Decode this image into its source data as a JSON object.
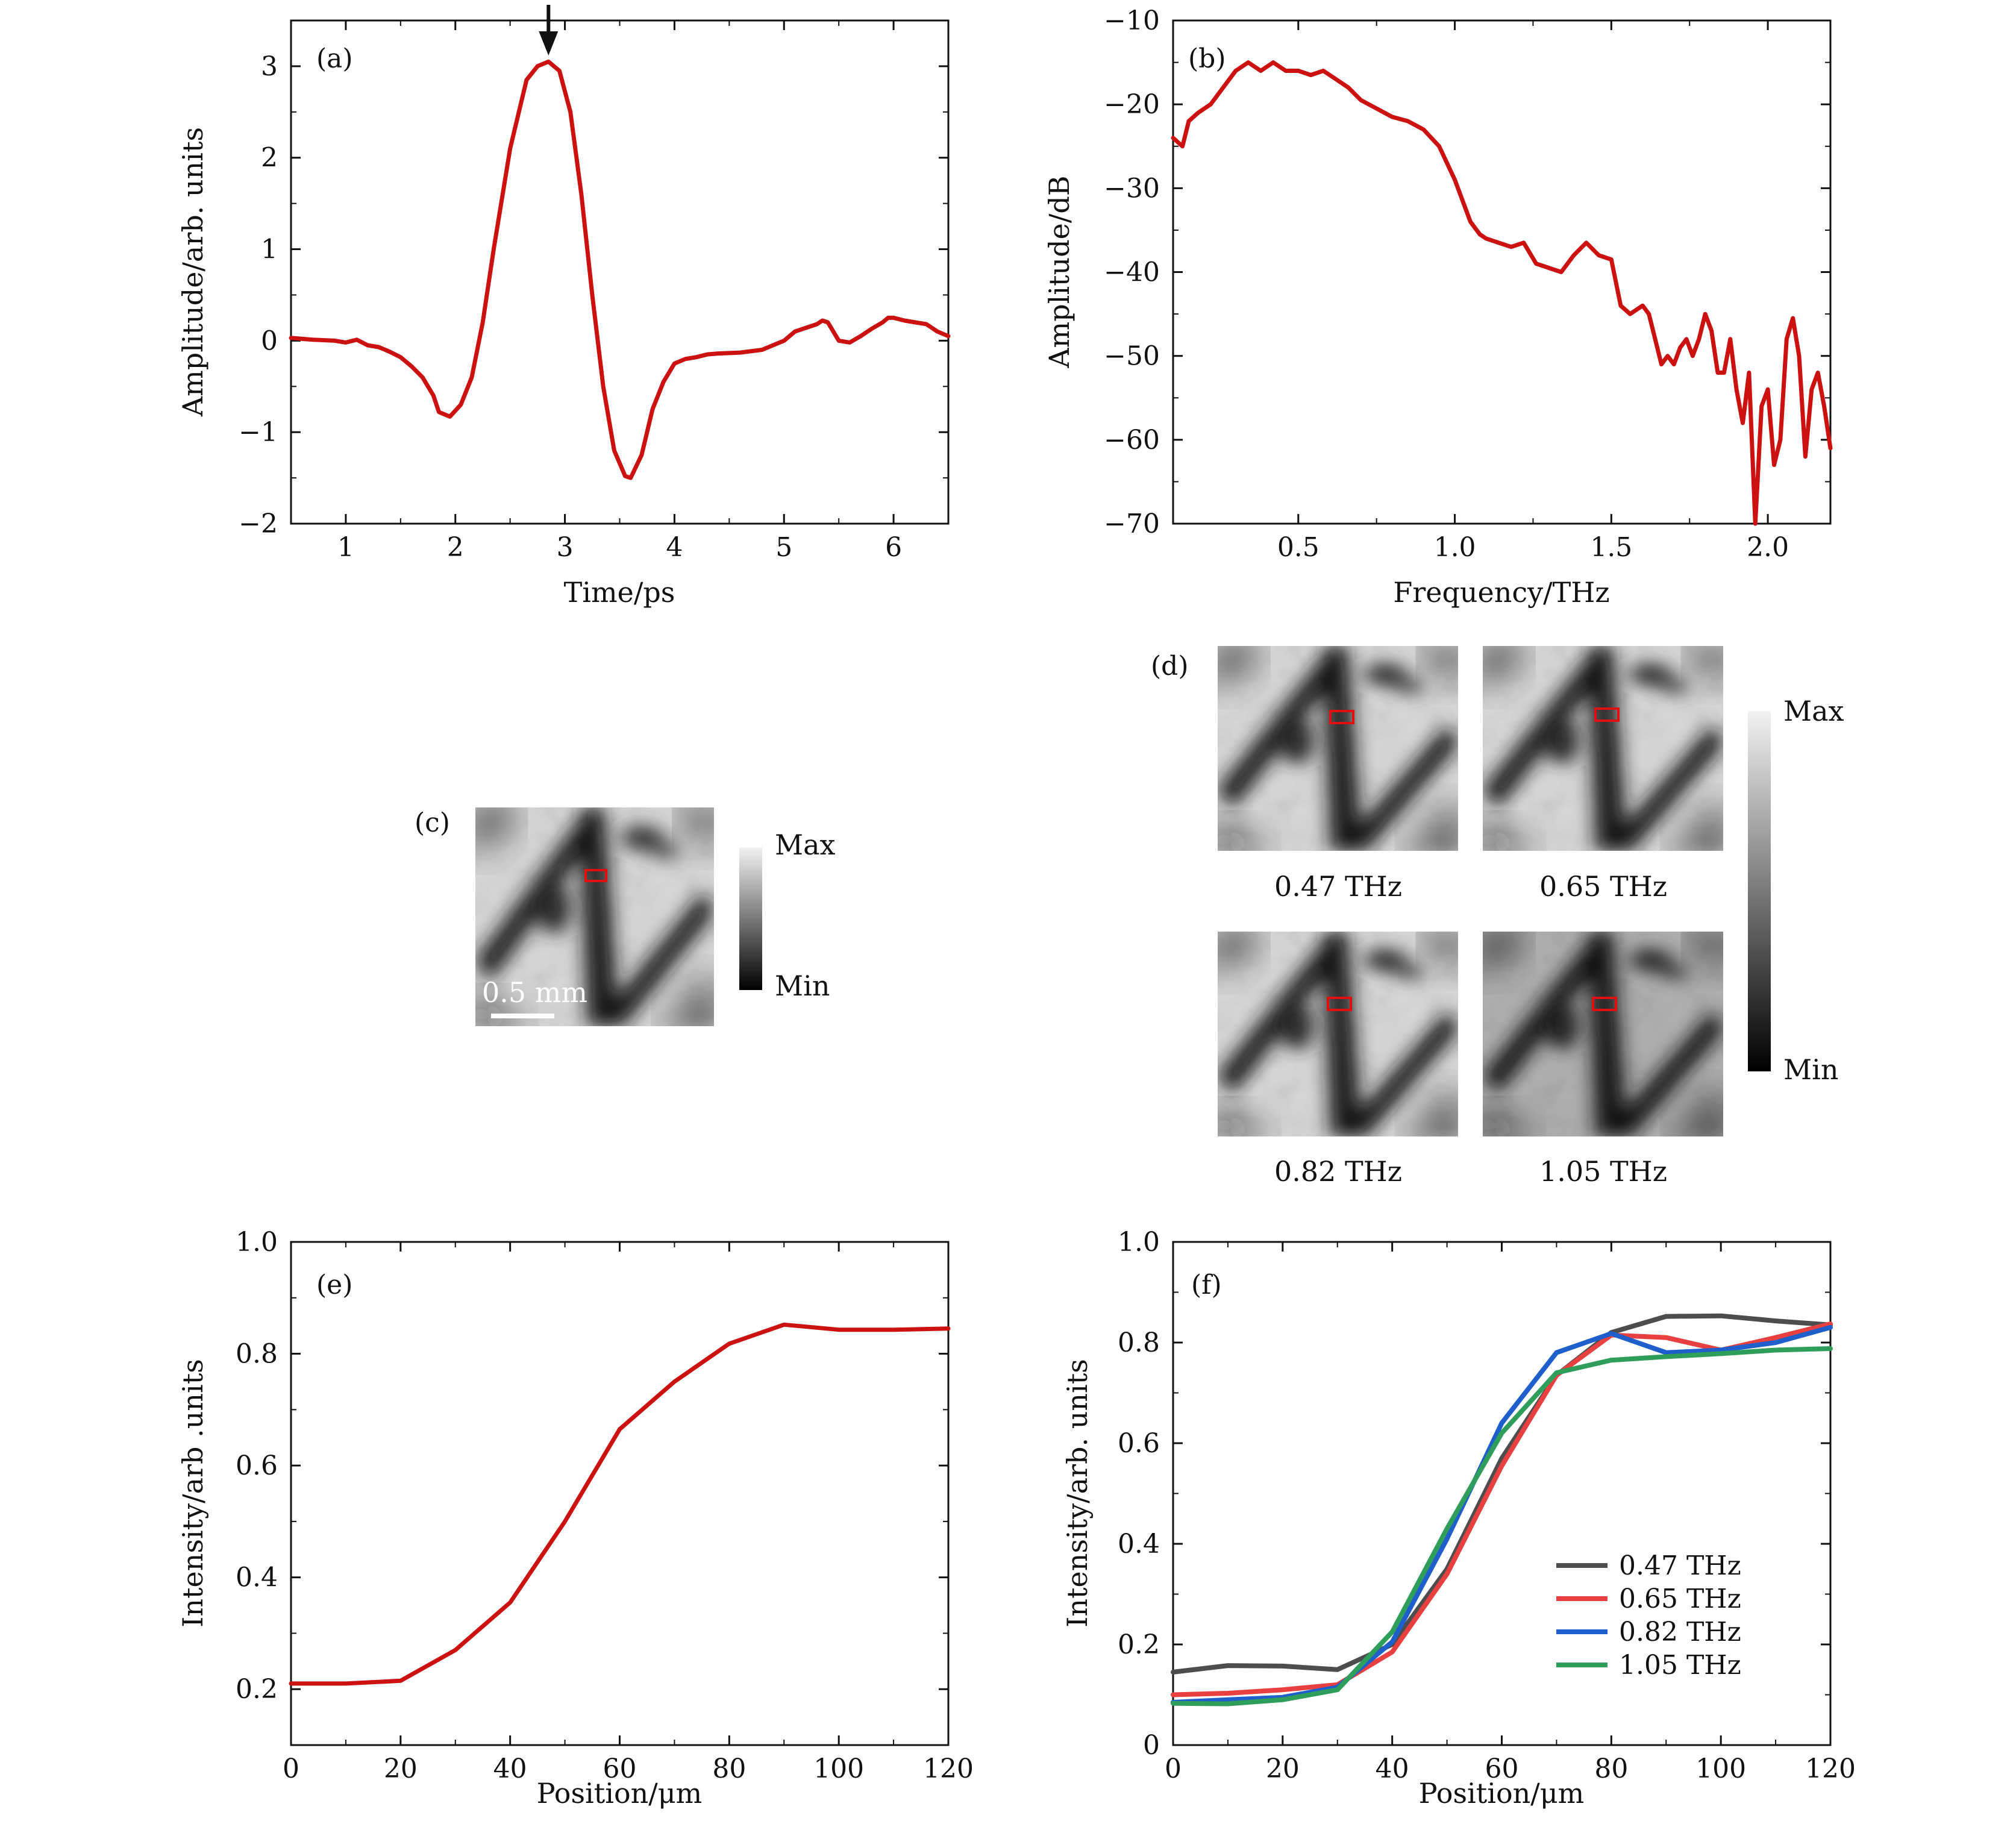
{
  "chart_data": [
    {
      "id": "a",
      "type": "line",
      "panel_label": "(a)",
      "xlabel": "Time/ps",
      "ylabel": "Amplitude/arb. units",
      "xlim": [
        0.5,
        6.5
      ],
      "ylim": [
        -2,
        3.5
      ],
      "xticks": [
        1,
        2,
        3,
        4,
        5,
        6
      ],
      "yticks": [
        -2,
        -1,
        0,
        1,
        2,
        3
      ],
      "xtick_labels": [
        "1",
        "2",
        "3",
        "4",
        "5",
        "6"
      ],
      "ytick_labels": [
        "−2",
        "−1",
        "0",
        "1",
        "2",
        "3"
      ],
      "annotation": {
        "type": "arrow-down",
        "x": 2.85
      },
      "color": "#cc1111",
      "series": [
        {
          "x": [
            0.5,
            0.7,
            0.9,
            1.0,
            1.1,
            1.2,
            1.3,
            1.4,
            1.5,
            1.6,
            1.7,
            1.8,
            1.85,
            1.95,
            2.05,
            2.15,
            2.25,
            2.35,
            2.5,
            2.65,
            2.75,
            2.85,
            2.95,
            3.05,
            3.15,
            3.25,
            3.35,
            3.45,
            3.55,
            3.6,
            3.7,
            3.8,
            3.9,
            4.0,
            4.1,
            4.2,
            4.3,
            4.4,
            4.6,
            4.8,
            5.0,
            5.1,
            5.2,
            5.3,
            5.35,
            5.4,
            5.45,
            5.5,
            5.6,
            5.7,
            5.8,
            5.9,
            5.95,
            6.0,
            6.1,
            6.2,
            6.3,
            6.4,
            6.5
          ],
          "y": [
            0.03,
            0.01,
            0.0,
            -0.02,
            0.01,
            -0.05,
            -0.07,
            -0.12,
            -0.18,
            -0.28,
            -0.4,
            -0.6,
            -0.78,
            -0.83,
            -0.7,
            -0.4,
            0.2,
            1.0,
            2.1,
            2.85,
            3.0,
            3.05,
            2.95,
            2.5,
            1.6,
            0.5,
            -0.5,
            -1.2,
            -1.48,
            -1.5,
            -1.25,
            -0.75,
            -0.45,
            -0.25,
            -0.2,
            -0.18,
            -0.15,
            -0.14,
            -0.13,
            -0.1,
            0.0,
            0.1,
            0.14,
            0.18,
            0.22,
            0.2,
            0.1,
            0.0,
            -0.02,
            0.05,
            0.13,
            0.2,
            0.25,
            0.25,
            0.22,
            0.2,
            0.18,
            0.1,
            0.05
          ]
        }
      ]
    },
    {
      "id": "b",
      "type": "line",
      "panel_label": "(b)",
      "xlabel": "Frequency/THz",
      "ylabel": "Amplitude/dB",
      "xlim": [
        0.1,
        2.2
      ],
      "ylim": [
        -70,
        -10
      ],
      "xticks": [
        0.5,
        1.0,
        1.5,
        2.0
      ],
      "yticks": [
        -70,
        -60,
        -50,
        -40,
        -30,
        -20,
        -10
      ],
      "xtick_labels": [
        "0.5",
        "1.0",
        "1.5",
        "2.0"
      ],
      "ytick_labels": [
        "−70",
        "−60",
        "−50",
        "−40",
        "−30",
        "−20",
        "−10"
      ],
      "color": "#cc1111",
      "series": [
        {
          "x": [
            0.1,
            0.13,
            0.15,
            0.18,
            0.22,
            0.26,
            0.3,
            0.34,
            0.38,
            0.42,
            0.46,
            0.5,
            0.54,
            0.58,
            0.62,
            0.66,
            0.7,
            0.75,
            0.8,
            0.85,
            0.9,
            0.95,
            1.0,
            1.05,
            1.08,
            1.1,
            1.14,
            1.18,
            1.22,
            1.26,
            1.3,
            1.34,
            1.38,
            1.42,
            1.46,
            1.5,
            1.53,
            1.56,
            1.6,
            1.62,
            1.64,
            1.66,
            1.68,
            1.7,
            1.72,
            1.74,
            1.76,
            1.78,
            1.8,
            1.82,
            1.84,
            1.86,
            1.88,
            1.9,
            1.92,
            1.94,
            1.96,
            1.98,
            2.0,
            2.02,
            2.04,
            2.06,
            2.08,
            2.1,
            2.12,
            2.14,
            2.16,
            2.18,
            2.2
          ],
          "y": [
            -24,
            -25,
            -22,
            -21,
            -20,
            -18,
            -16,
            -15,
            -16,
            -15,
            -16,
            -16,
            -16.5,
            -16,
            -17,
            -18,
            -19.5,
            -20.5,
            -21.5,
            -22,
            -23,
            -25,
            -29,
            -34,
            -35.5,
            -36,
            -36.5,
            -37,
            -36.5,
            -39,
            -39.5,
            -40,
            -38,
            -36.5,
            -38,
            -38.5,
            -44,
            -45,
            -44,
            -45,
            -48,
            -51,
            -50,
            -51,
            -49,
            -48,
            -50,
            -48,
            -45,
            -47,
            -52,
            -52,
            -48,
            -54,
            -58,
            -52,
            -70,
            -56,
            -54,
            -63,
            -60,
            -48,
            -45.5,
            -50,
            -62,
            -54,
            -52,
            -56,
            -61
          ]
        }
      ]
    },
    {
      "id": "c",
      "type": "heatmap",
      "panel_label": "(c)",
      "scale_bar_label": "0.5 mm",
      "colorbar": {
        "max_label": "Max",
        "min_label": "Min"
      }
    },
    {
      "id": "d",
      "type": "heatmap",
      "panel_label": "(d)",
      "image_labels": [
        "0.47 THz",
        "0.65 THz",
        "0.82 THz",
        "1.05 THz"
      ],
      "colorbar": {
        "max_label": "Max",
        "min_label": "Min"
      }
    },
    {
      "id": "e",
      "type": "line",
      "panel_label": "(e)",
      "xlabel": "Position/μm",
      "ylabel": "Intensity/arb .units",
      "xlim": [
        0,
        120
      ],
      "ylim": [
        0.1,
        1.0
      ],
      "xticks": [
        0,
        20,
        40,
        60,
        80,
        100,
        120
      ],
      "yticks": [
        0.2,
        0.4,
        0.6,
        0.8,
        1.0
      ],
      "xtick_labels": [
        "0",
        "20",
        "40",
        "60",
        "80",
        "100",
        "120"
      ],
      "ytick_labels": [
        "0.2",
        "0.4",
        "0.6",
        "0.8",
        "1.0"
      ],
      "color": "#cc1111",
      "series": [
        {
          "x": [
            0,
            10,
            20,
            30,
            40,
            50,
            60,
            70,
            80,
            90,
            100,
            110,
            120
          ],
          "y": [
            0.21,
            0.21,
            0.215,
            0.27,
            0.355,
            0.5,
            0.665,
            0.75,
            0.818,
            0.852,
            0.843,
            0.843,
            0.845
          ]
        }
      ]
    },
    {
      "id": "f",
      "type": "line",
      "panel_label": "(f)",
      "xlabel": "Position/μm",
      "ylabel": "Intensity/arb. units",
      "xlim": [
        0,
        120
      ],
      "ylim": [
        0,
        1.0
      ],
      "xticks": [
        0,
        20,
        40,
        60,
        80,
        100,
        120
      ],
      "yticks": [
        0,
        0.2,
        0.4,
        0.6,
        0.8,
        1.0
      ],
      "xtick_labels": [
        "0",
        "20",
        "40",
        "60",
        "80",
        "100",
        "120"
      ],
      "ytick_labels": [
        "0",
        "0.2",
        "0.4",
        "0.6",
        "0.8",
        "1.0"
      ],
      "legend": "lower-right",
      "series": [
        {
          "name": "0.47 THz",
          "color": "#4d4d4d",
          "x": [
            0,
            10,
            20,
            30,
            40,
            50,
            60,
            70,
            80,
            90,
            100,
            110,
            120
          ],
          "y": [
            0.145,
            0.158,
            0.157,
            0.15,
            0.2,
            0.35,
            0.57,
            0.735,
            0.82,
            0.852,
            0.853,
            0.843,
            0.835
          ]
        },
        {
          "name": "0.65 THz",
          "color": "#e84040",
          "x": [
            0,
            10,
            20,
            30,
            40,
            50,
            60,
            70,
            80,
            90,
            100,
            110,
            120
          ],
          "y": [
            0.1,
            0.103,
            0.11,
            0.12,
            0.185,
            0.34,
            0.555,
            0.735,
            0.815,
            0.81,
            0.785,
            0.81,
            0.837
          ]
        },
        {
          "name": "0.82 THz",
          "color": "#1f5fcc",
          "x": [
            0,
            10,
            20,
            30,
            40,
            50,
            60,
            70,
            80,
            90,
            100,
            110,
            120
          ],
          "y": [
            0.085,
            0.09,
            0.095,
            0.115,
            0.205,
            0.41,
            0.64,
            0.78,
            0.818,
            0.78,
            0.785,
            0.8,
            0.83
          ]
        },
        {
          "name": "1.05 THz",
          "color": "#2e9e5a",
          "x": [
            0,
            10,
            20,
            30,
            40,
            50,
            60,
            70,
            80,
            90,
            100,
            110,
            120
          ],
          "y": [
            0.083,
            0.082,
            0.09,
            0.11,
            0.225,
            0.43,
            0.62,
            0.74,
            0.765,
            0.772,
            0.778,
            0.785,
            0.788
          ]
        }
      ]
    }
  ]
}
